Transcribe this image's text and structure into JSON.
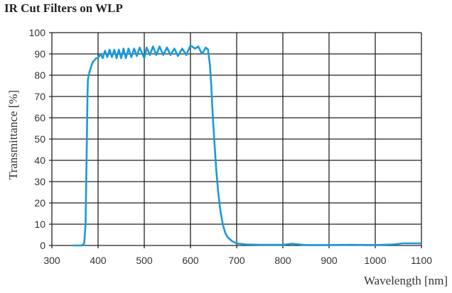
{
  "chart_data": {
    "type": "line",
    "title": "IR Cut Filters on WLP",
    "xlabel": "Wavelength [nm]",
    "ylabel": "Transmittance [%]",
    "xlim": [
      300,
      1100
    ],
    "ylim": [
      0,
      100
    ],
    "xticks": [
      300,
      400,
      500,
      600,
      700,
      800,
      900,
      1000,
      1100
    ],
    "yticks": [
      0,
      10,
      20,
      30,
      40,
      50,
      60,
      70,
      80,
      90,
      100
    ],
    "grid": true,
    "line_color": "#1a9ad6",
    "series": [
      {
        "x": [
          345,
          365,
          370,
          373,
          375,
          377,
          378,
          380,
          382,
          385,
          388,
          392,
          396,
          400,
          405,
          410,
          415,
          420,
          425,
          430,
          435,
          440,
          445,
          450,
          455,
          460,
          466,
          472,
          478,
          484,
          490,
          496,
          500,
          505,
          512,
          519,
          526,
          533,
          541,
          549,
          557,
          565,
          573,
          582,
          591,
          600,
          610,
          617,
          625,
          633,
          638,
          642,
          645,
          648,
          652,
          656,
          660,
          665,
          670,
          675,
          680,
          690,
          700,
          720,
          750,
          800,
          820,
          850,
          900,
          950,
          1000,
          1040,
          1060,
          1100
        ],
        "y": [
          0,
          0,
          1,
          10,
          40,
          70,
          78,
          80,
          82,
          84,
          86,
          87,
          88,
          88,
          90,
          88,
          91.5,
          88.5,
          92,
          88.5,
          92,
          88,
          92,
          88,
          92.5,
          88,
          92.5,
          88.5,
          92.5,
          89,
          93,
          90,
          88,
          93,
          89.5,
          93.5,
          89.5,
          93.5,
          89.5,
          93,
          89.5,
          92.5,
          89,
          92.5,
          89.5,
          94,
          92.5,
          93.5,
          90,
          93,
          92,
          85,
          75,
          62,
          48,
          35,
          25,
          16,
          10,
          6,
          4,
          2,
          1,
          0.5,
          0.3,
          0.3,
          0.8,
          0.2,
          0.2,
          0.3,
          0.2,
          0.5,
          1,
          1
        ]
      }
    ]
  }
}
